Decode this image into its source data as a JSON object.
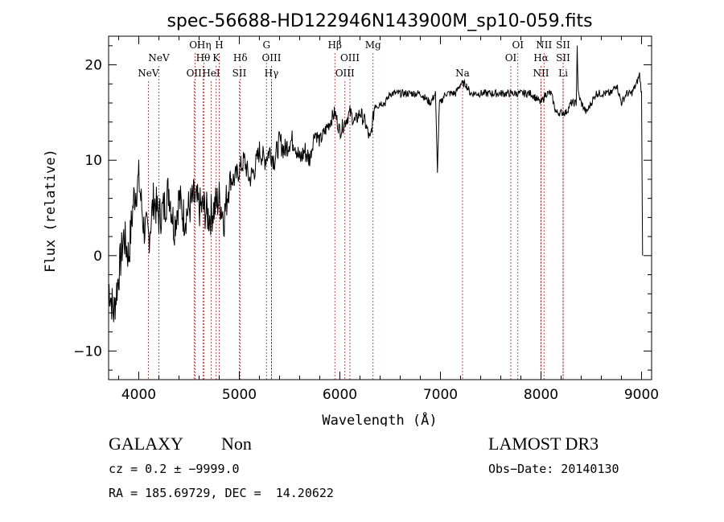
{
  "chart_data": {
    "type": "line",
    "title": "spec-56688-HD122946N143900M_sp10-059.fits",
    "xlabel": "Wavelength (Å)",
    "ylabel": "Flux (relative)",
    "xlim": [
      3700,
      9100
    ],
    "ylim": [
      -13,
      23
    ],
    "x_ticks": [
      4000,
      5000,
      6000,
      7000,
      8000,
      9000
    ],
    "x_tick_labels": [
      "4000",
      "5000",
      "6000",
      "7000",
      "8000",
      "9000"
    ],
    "y_ticks": [
      -10,
      0,
      10,
      20
    ],
    "y_tick_labels": [
      "−10",
      "0",
      "10",
      "20"
    ],
    "series": [
      {
        "name": "spectrum",
        "x": [
          3700,
          3750,
          3800,
          3850,
          3900,
          3950,
          4000,
          4050,
          4100,
          4150,
          4200,
          4250,
          4300,
          4350,
          4400,
          4450,
          4500,
          4550,
          4600,
          4650,
          4700,
          4750,
          4800,
          4850,
          4900,
          4950,
          5000,
          5050,
          5100,
          5150,
          5200,
          5250,
          5300,
          5350,
          5400,
          5450,
          5500,
          5550,
          5600,
          5650,
          5700,
          5750,
          5800,
          5850,
          5900,
          5950,
          6000,
          6050,
          6100,
          6150,
          6200,
          6250,
          6300,
          6350,
          6400,
          6450,
          6500,
          6600,
          6700,
          6800,
          6900,
          6950,
          6970,
          6990,
          7000,
          7050,
          7100,
          7150,
          7200,
          7250,
          7300,
          7400,
          7500,
          7600,
          7700,
          7800,
          7900,
          8000,
          8050,
          8100,
          8150,
          8200,
          8250,
          8300,
          8350,
          8360,
          8370,
          8400,
          8450,
          8500,
          8550,
          8600,
          8650,
          8700,
          8750,
          8800,
          8850,
          8900,
          8950,
          8980,
          9000,
          9010
        ],
        "y": [
          -3,
          -6,
          -2,
          2,
          0,
          6,
          8,
          3,
          2,
          6,
          4,
          5,
          7,
          3,
          6,
          4,
          5,
          6,
          5,
          5,
          4,
          5,
          6,
          4,
          8,
          8,
          9,
          10,
          8,
          9,
          11,
          10,
          11,
          10,
          12,
          11,
          12,
          12,
          10,
          11,
          10,
          13,
          12,
          13,
          14,
          15,
          13,
          14,
          15,
          14,
          15,
          14,
          12,
          16,
          16,
          16,
          17,
          17,
          17,
          17,
          16,
          17,
          9,
          16,
          16,
          17,
          17,
          17,
          18,
          18,
          17,
          17,
          17,
          17,
          17,
          17,
          17,
          16,
          17,
          17,
          15,
          15,
          15,
          16,
          16,
          22,
          17,
          16,
          15,
          16,
          17,
          17,
          17,
          17,
          18,
          16,
          17,
          17,
          18,
          19,
          17,
          0
        ]
      }
    ],
    "lines": [
      {
        "name": "NeV",
        "wl": 4095,
        "row": 2
      },
      {
        "name": "NeV",
        "wl": 4200,
        "row": 1
      },
      {
        "name": "OII",
        "wl": 4550,
        "row": 2
      },
      {
        "name": "OI",
        "wl": 4560,
        "row": 0
      },
      {
        "name": "Hη",
        "wl": 4650,
        "row": 0
      },
      {
        "name": "Hθ",
        "wl": 4640,
        "row": 1
      },
      {
        "name": "HeI",
        "wl": 4720,
        "row": 2
      },
      {
        "name": "K",
        "wl": 4770,
        "row": 1
      },
      {
        "name": "H",
        "wl": 4800,
        "row": 0
      },
      {
        "name": "Hδ",
        "wl": 5010,
        "row": 1
      },
      {
        "name": "SII",
        "wl": 5000,
        "row": 2
      },
      {
        "name": "G",
        "wl": 5270,
        "row": 0
      },
      {
        "name": "OIII",
        "wl": 5320,
        "row": 1
      },
      {
        "name": "Hγ",
        "wl": 5320,
        "row": 2
      },
      {
        "name": "Hβ",
        "wl": 5950,
        "row": 0
      },
      {
        "name": "OIII",
        "wl": 6100,
        "row": 1
      },
      {
        "name": "OIII",
        "wl": 6050,
        "row": 2
      },
      {
        "name": "Mg",
        "wl": 6330,
        "row": 0
      },
      {
        "name": "Na",
        "wl": 7220,
        "row": 2
      },
      {
        "name": "OI",
        "wl": 7770,
        "row": 0
      },
      {
        "name": "OI",
        "wl": 7700,
        "row": 1
      },
      {
        "name": "NII",
        "wl": 8030,
        "row": 0
      },
      {
        "name": "Hα",
        "wl": 8000,
        "row": 1
      },
      {
        "name": "NII",
        "wl": 8000,
        "row": 2
      },
      {
        "name": "SII",
        "wl": 8220,
        "row": 0
      },
      {
        "name": "SII",
        "wl": 8220,
        "row": 1
      },
      {
        "name": "Li",
        "wl": 8220,
        "row": 2
      }
    ]
  },
  "footer": {
    "object_class": "GALAXY",
    "subclass": "Non",
    "survey": "LAMOST DR3",
    "redshift": "cz = 0.2 ± −9999.0",
    "obs_date": "Obs−Date: 20140130",
    "coords": "RA = 185.69729, DEC =  14.20622"
  },
  "colors": {
    "axis": "#000000",
    "line_marker": "#b02020",
    "background": "#ffffff"
  }
}
